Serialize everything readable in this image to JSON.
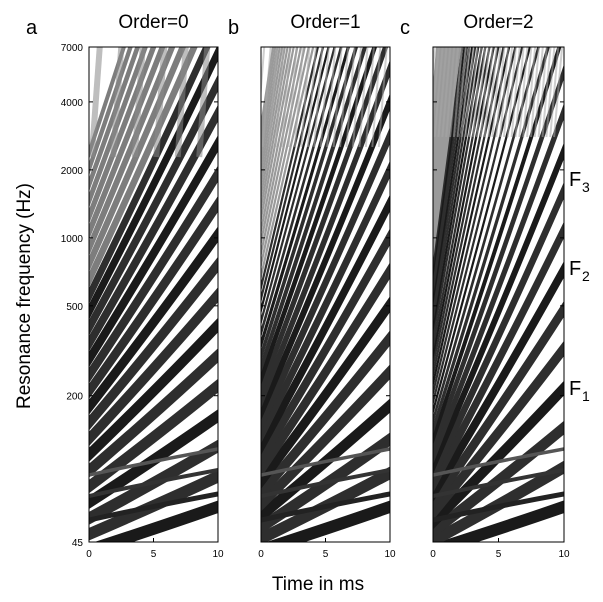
{
  "chart_data": {
    "type": "heatmap",
    "ylabel": "Resonance frequency (Hz)",
    "xlabel": "Time in ms",
    "y_scale": "log",
    "ylim": [
      45,
      7000
    ],
    "xlim": [
      0,
      10
    ],
    "y_ticks": [
      "7000",
      "4000",
      "2000",
      "1000",
      "500",
      "200",
      "45"
    ],
    "x_ticks": [
      "0",
      "5",
      "10"
    ],
    "colormap": "grayscale",
    "panels": [
      {
        "letter": "a",
        "title": "Order=0"
      },
      {
        "letter": "b",
        "title": "Order=1"
      },
      {
        "letter": "c",
        "title": "Order=2"
      }
    ],
    "formant_labels": [
      {
        "letter": "F",
        "sub": "3"
      },
      {
        "letter": "F",
        "sub": "2"
      },
      {
        "letter": "F",
        "sub": "1"
      }
    ]
  }
}
